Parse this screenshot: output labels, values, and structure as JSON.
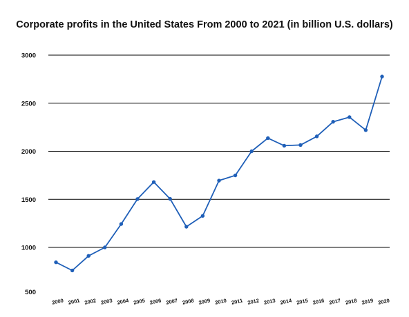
{
  "chart_data": {
    "type": "line",
    "title": "Corporate profits in the United States From 2000 to 2021 (in billion U.S. dollars)",
    "xlabel": "",
    "ylabel": "",
    "ylim": [
      500,
      3000
    ],
    "yticks": [
      3000,
      2500,
      2000,
      1500,
      1000,
      500
    ],
    "grid": true,
    "legend": "none",
    "line_color": "#1f5fb8",
    "categories": [
      "2000",
      "2001",
      "2002",
      "2003",
      "2004",
      "2005",
      "2006",
      "2007",
      "2008",
      "2009",
      "2010",
      "2011",
      "2012",
      "2013",
      "2014",
      "2015",
      "2016",
      "2017",
      "2018",
      "2019",
      "2020"
    ],
    "series": [
      {
        "values": [
          845,
          760,
          912,
          1000,
          1243,
          1503,
          1680,
          1505,
          1215,
          1328,
          1695,
          1749,
          2000,
          2137,
          2058,
          2065,
          2155,
          2307,
          2355,
          2220,
          2777
        ]
      }
    ]
  }
}
